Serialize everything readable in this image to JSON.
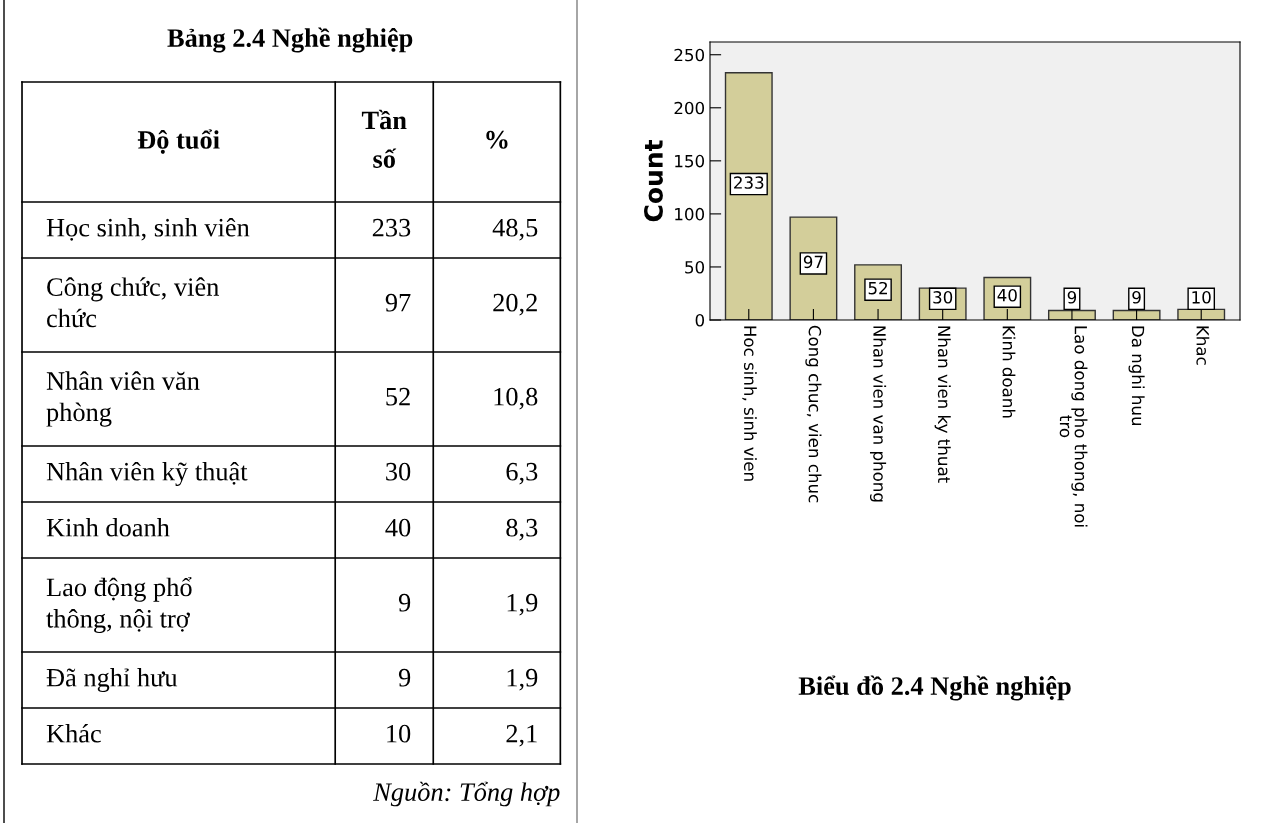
{
  "chart_data": [
    {
      "type": "other",
      "title": "Bảng 2.4 Nghề nghiệp",
      "xlabel": "Độ tuổi",
      "categories": [
        "Học sinh, sinh viên",
        "Công chức, viên\nchức",
        "Nhân viên văn\nphòng",
        "Nhân viên kỹ thuật",
        "Kinh doanh",
        "Lao động phổ\nthông, nội trợ",
        "Đã nghỉ hưu",
        "Khác"
      ],
      "series": [
        {
          "name": "Tần\nsố",
          "values": [
            233,
            97,
            52,
            30,
            40,
            9,
            9,
            10
          ]
        },
        {
          "name": "%",
          "values": [
            48.5,
            20.2,
            10.8,
            6.3,
            8.3,
            1.9,
            1.9,
            2.1
          ],
          "value_labels": [
            "48,5",
            "20,2",
            "10,8",
            "6,3",
            "8,3",
            "1,9",
            "1,9",
            "2,1"
          ]
        }
      ],
      "data_labels": true,
      "annotations": [
        "Nguồn: Tổng hợp"
      ]
    },
    {
      "type": "bar",
      "title": "Biểu đồ 2.4 Nghề nghiệp",
      "ylabel": "Count",
      "categories": [
        "Hoc sinh, sinh vien",
        "Cong chuc, vien chuc",
        "Nhan vien van phong",
        "Nhan vien ky thuat",
        "Kinh doanh",
        "Lao dong pho thong, noi\ntro",
        "Da nghi huu",
        "Khac"
      ],
      "values": [
        233,
        97,
        52,
        30,
        40,
        9,
        9,
        10
      ],
      "color": "#d3ce9a",
      "ylim": [
        0,
        262
      ],
      "yticks": [
        0,
        50,
        100,
        150,
        200,
        250
      ],
      "grid": false,
      "data_labels": true
    }
  ]
}
